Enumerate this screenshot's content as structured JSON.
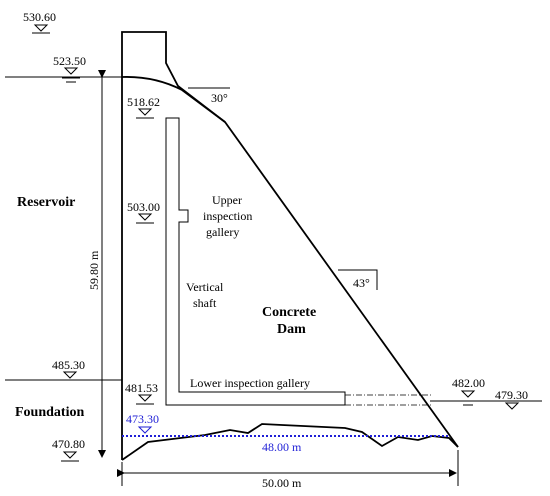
{
  "figure": {
    "elevations": {
      "crest": "530.60",
      "normal_water_level": "523.50",
      "slope_break": "518.62",
      "mid_gallery": "503.00",
      "ground_level": "485.30",
      "lower_gallery": "481.53",
      "downstream_level": "482.00",
      "tailwater": "479.30",
      "base_top": "473.30",
      "base_bottom": "470.80"
    },
    "dimensions": {
      "height": "59.80 m",
      "base_width": "50.00 m",
      "foundation_width": "48.00 m"
    },
    "angles": {
      "upper_slope": "30°",
      "lower_slope": "43°"
    },
    "labels": {
      "reservoir": "Reservoir",
      "foundation": "Foundation",
      "dam_line1": "Concrete",
      "dam_line2": "Dam",
      "upper_gallery_line1": "Upper",
      "upper_gallery_line2": "inspection",
      "upper_gallery_line3": "gallery",
      "shaft_line1": "Vertical",
      "shaft_line2": "shaft",
      "lower_gallery": "Lower inspection gallery"
    },
    "colors": {
      "line": "#000000",
      "foundation_line": "#1f1fd6"
    }
  }
}
